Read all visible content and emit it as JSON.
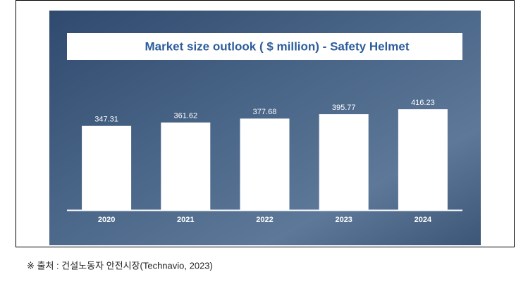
{
  "chart_data": {
    "type": "bar",
    "title": "Market size outlook ( $ million) - Safety Helmet",
    "categories": [
      "2020",
      "2021",
      "2022",
      "2023",
      "2024"
    ],
    "values": [
      347.31,
      361.62,
      377.68,
      395.77,
      416.23
    ],
    "color": "#ffffff"
  },
  "source": "※ 출처 : 건설노동자 안전시장(Technavio, 2023)"
}
